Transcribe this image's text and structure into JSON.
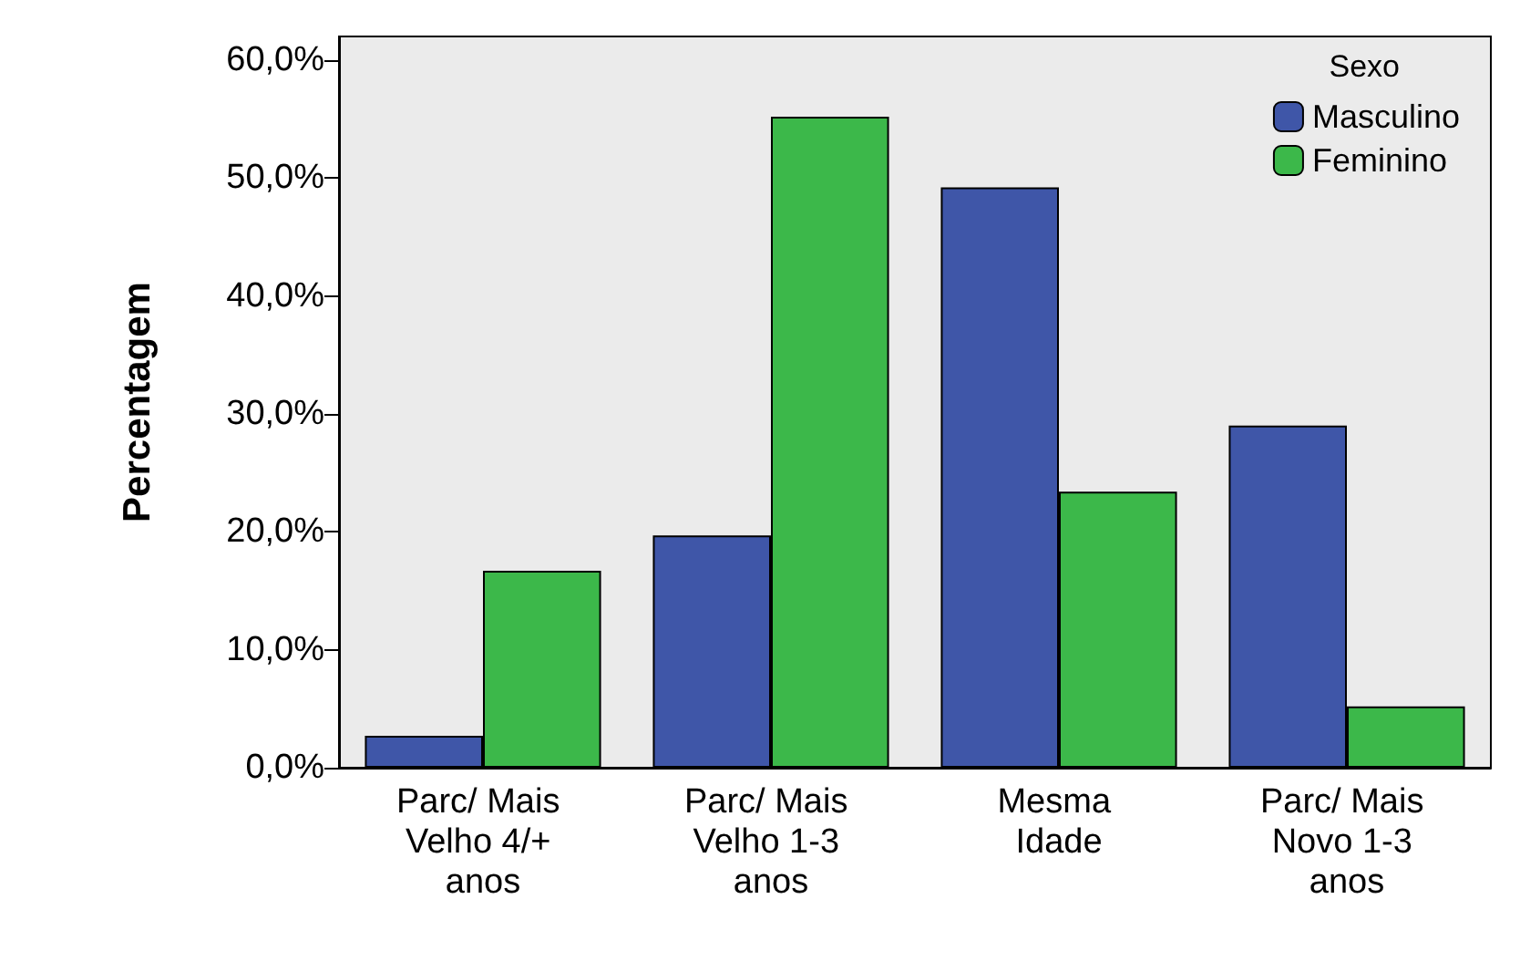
{
  "chart_data": {
    "type": "bar",
    "ylabel": "Percentagem",
    "legend_title": "Sexo",
    "categories": [
      "Parc/ Mais Velho 4/+ anos",
      "Parc/ Mais Velho 1-3 anos",
      "Mesma Idade",
      "Parc/ Mais Novo 1-3 anos"
    ],
    "series": [
      {
        "name": "Masculino",
        "color": "#3f56a8",
        "values": [
          2.7,
          19.7,
          49.2,
          29.0
        ]
      },
      {
        "name": "Feminino",
        "color": "#3cb84a",
        "values": [
          16.7,
          55.2,
          23.4,
          5.2
        ]
      }
    ],
    "ylim": [
      0,
      62
    ],
    "yticks": [
      {
        "value": 0,
        "label": "0,0%"
      },
      {
        "value": 10,
        "label": "10,0%"
      },
      {
        "value": 20,
        "label": "20,0%"
      },
      {
        "value": 30,
        "label": "30,0%"
      },
      {
        "value": 40,
        "label": "40,0%"
      },
      {
        "value": 50,
        "label": "50,0%"
      },
      {
        "value": 60,
        "label": "60,0%"
      }
    ],
    "grid": false,
    "legend": "top right"
  }
}
